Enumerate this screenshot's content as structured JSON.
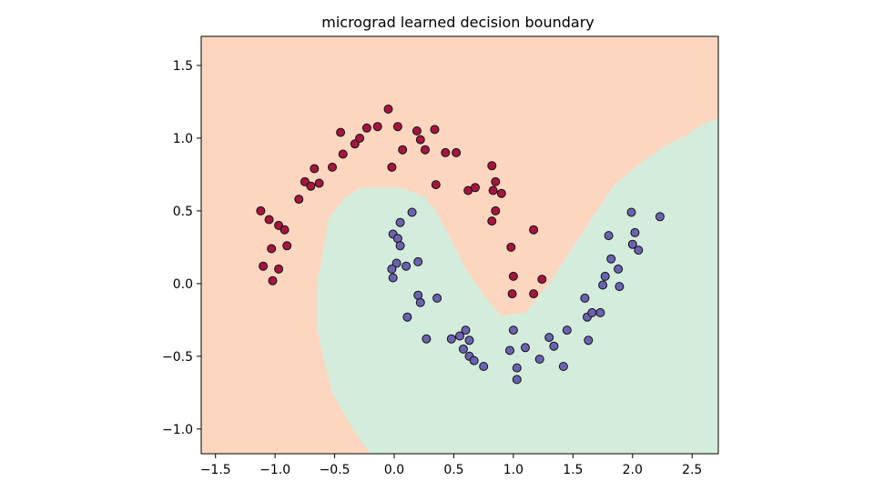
{
  "chart_data": {
    "type": "scatter",
    "title": "micrograd learned decision boundary",
    "xlabel": "",
    "ylabel": "",
    "xlim": [
      -1.62,
      2.72
    ],
    "ylim": [
      -1.17,
      1.7
    ],
    "xticks": [
      -1.5,
      -1.0,
      -0.5,
      0.0,
      0.5,
      1.0,
      1.5,
      2.0,
      2.5
    ],
    "xtick_labels": [
      "−1.5",
      "−1.0",
      "−0.5",
      "0.0",
      "0.5",
      "1.0",
      "1.5",
      "2.0",
      "2.5"
    ],
    "yticks": [
      -1.0,
      -0.5,
      0.0,
      0.5,
      1.0,
      1.5
    ],
    "ytick_labels": [
      "−1.0",
      "−0.5",
      "0.0",
      "0.5",
      "1.0",
      "1.5"
    ],
    "grid": false,
    "colors": {
      "background": "#fdd6c0",
      "region_class1": "#d3ecdc",
      "class0_point": "#a5153f",
      "class1_point": "#6a62b0",
      "marker_edge": "#111111"
    },
    "decision_region_class1": [
      [
        -0.2,
        -1.17
      ],
      [
        -0.35,
        -1.0
      ],
      [
        -0.52,
        -0.75
      ],
      [
        -0.6,
        -0.5
      ],
      [
        -0.65,
        -0.3
      ],
      [
        -0.65,
        0.0
      ],
      [
        -0.6,
        0.2
      ],
      [
        -0.55,
        0.45
      ],
      [
        -0.4,
        0.6
      ],
      [
        -0.27,
        0.66
      ],
      [
        0.05,
        0.66
      ],
      [
        0.25,
        0.6
      ],
      [
        0.35,
        0.5
      ],
      [
        0.48,
        0.3
      ],
      [
        0.6,
        0.1
      ],
      [
        0.75,
        -0.08
      ],
      [
        0.9,
        -0.22
      ],
      [
        1.1,
        -0.2
      ],
      [
        1.3,
        0.0
      ],
      [
        1.5,
        0.25
      ],
      [
        1.7,
        0.5
      ],
      [
        1.85,
        0.68
      ],
      [
        2.1,
        0.85
      ],
      [
        2.3,
        0.96
      ],
      [
        2.45,
        1.02
      ],
      [
        2.6,
        1.1
      ],
      [
        2.72,
        1.14
      ],
      [
        2.72,
        -1.17
      ]
    ],
    "series": [
      {
        "class": 0,
        "points": [
          [
            -1.12,
            0.5
          ],
          [
            -1.05,
            0.44
          ],
          [
            -0.97,
            0.4
          ],
          [
            -0.92,
            0.37
          ],
          [
            -1.03,
            0.24
          ],
          [
            -0.9,
            0.26
          ],
          [
            -1.1,
            0.12
          ],
          [
            -0.97,
            0.1
          ],
          [
            -1.02,
            0.02
          ],
          [
            -0.8,
            0.58
          ],
          [
            -0.75,
            0.7
          ],
          [
            -0.7,
            0.67
          ],
          [
            -0.63,
            0.69
          ],
          [
            -0.67,
            0.79
          ],
          [
            -0.52,
            0.8
          ],
          [
            -0.43,
            0.89
          ],
          [
            -0.45,
            1.04
          ],
          [
            -0.33,
            0.96
          ],
          [
            -0.29,
            1.0
          ],
          [
            -0.23,
            1.07
          ],
          [
            -0.14,
            1.08
          ],
          [
            -0.05,
            1.2
          ],
          [
            0.03,
            1.08
          ],
          [
            -0.02,
            0.8
          ],
          [
            0.07,
            0.92
          ],
          [
            0.19,
            1.05
          ],
          [
            0.22,
            0.99
          ],
          [
            0.26,
            0.92
          ],
          [
            0.34,
            1.06
          ],
          [
            0.43,
            0.9
          ],
          [
            0.52,
            0.9
          ],
          [
            0.35,
            0.68
          ],
          [
            0.62,
            0.64
          ],
          [
            0.68,
            0.66
          ],
          [
            0.82,
            0.81
          ],
          [
            0.83,
            0.64
          ],
          [
            0.85,
            0.7
          ],
          [
            0.9,
            0.62
          ],
          [
            0.85,
            0.5
          ],
          [
            0.82,
            0.43
          ],
          [
            0.98,
            0.25
          ],
          [
            1.0,
            0.05
          ],
          [
            0.99,
            -0.07
          ],
          [
            1.17,
            -0.07
          ],
          [
            1.24,
            0.03
          ],
          [
            1.17,
            0.37
          ]
        ]
      },
      {
        "class": 1,
        "points": [
          [
            0.15,
            0.49
          ],
          [
            0.05,
            0.42
          ],
          [
            -0.01,
            0.34
          ],
          [
            0.03,
            0.31
          ],
          [
            0.05,
            0.26
          ],
          [
            0.2,
            0.15
          ],
          [
            0.02,
            0.14
          ],
          [
            -0.02,
            0.1
          ],
          [
            0.1,
            0.12
          ],
          [
            -0.01,
            0.04
          ],
          [
            0.2,
            -0.08
          ],
          [
            0.22,
            -0.13
          ],
          [
            0.36,
            -0.1
          ],
          [
            0.11,
            -0.23
          ],
          [
            0.27,
            -0.38
          ],
          [
            0.48,
            -0.38
          ],
          [
            0.55,
            -0.36
          ],
          [
            0.6,
            -0.32
          ],
          [
            0.63,
            -0.39
          ],
          [
            0.58,
            -0.45
          ],
          [
            0.63,
            -0.5
          ],
          [
            0.67,
            -0.53
          ],
          [
            0.75,
            -0.57
          ],
          [
            0.97,
            -0.46
          ],
          [
            1.0,
            -0.32
          ],
          [
            1.03,
            -0.58
          ],
          [
            1.03,
            -0.66
          ],
          [
            1.1,
            -0.44
          ],
          [
            1.22,
            -0.52
          ],
          [
            1.3,
            -0.37
          ],
          [
            1.34,
            -0.43
          ],
          [
            1.42,
            -0.57
          ],
          [
            1.45,
            -0.32
          ],
          [
            1.62,
            -0.23
          ],
          [
            1.66,
            -0.2
          ],
          [
            1.73,
            -0.2
          ],
          [
            1.6,
            -0.1
          ],
          [
            1.63,
            -0.39
          ],
          [
            1.77,
            0.05
          ],
          [
            1.82,
            0.17
          ],
          [
            1.8,
            0.33
          ],
          [
            1.88,
            0.1
          ],
          [
            1.89,
            -0.02
          ],
          [
            1.75,
            -0.01
          ],
          [
            1.99,
            0.49
          ],
          [
            2.0,
            0.27
          ],
          [
            2.02,
            0.35
          ],
          [
            2.05,
            0.23
          ],
          [
            2.23,
            0.46
          ]
        ]
      }
    ]
  }
}
